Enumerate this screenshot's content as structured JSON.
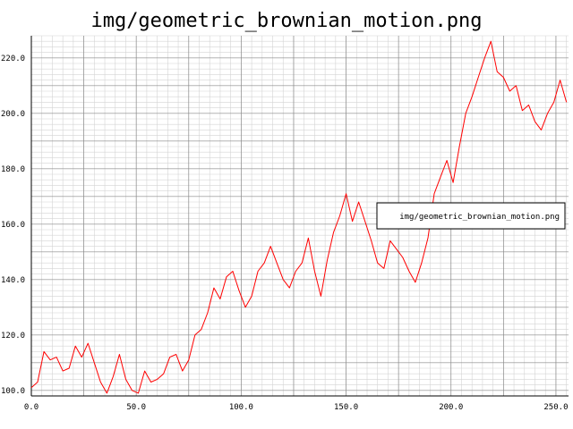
{
  "chart_data": {
    "type": "line",
    "title": "img/geometric_brownian_motion.png",
    "xlabel": "",
    "ylabel": "",
    "xlim": [
      0,
      256
    ],
    "ylim": [
      98,
      228
    ],
    "x_ticks": [
      0,
      50,
      100,
      150,
      200,
      250
    ],
    "x_tick_labels": [
      "0.0",
      "50.0",
      "100.0",
      "150.0",
      "200.0",
      "250.0"
    ],
    "y_ticks": [
      100,
      120,
      140,
      160,
      180,
      200,
      220
    ],
    "y_tick_labels": [
      "100.0",
      "120.0",
      "140.0",
      "160.0",
      "180.0",
      "200.0",
      "220.0"
    ],
    "grid": true,
    "legend_position": "right",
    "line_color": "#ff0000",
    "series": [
      {
        "name": "img/geometric_brownian_motion.png",
        "x": [
          0,
          3,
          6,
          9,
          12,
          15,
          18,
          21,
          24,
          27,
          30,
          33,
          36,
          39,
          42,
          45,
          48,
          51,
          54,
          57,
          60,
          63,
          66,
          69,
          72,
          75,
          78,
          81,
          84,
          87,
          90,
          93,
          96,
          99,
          102,
          105,
          108,
          111,
          114,
          117,
          120,
          123,
          126,
          129,
          132,
          135,
          138,
          141,
          144,
          147,
          150,
          153,
          156,
          159,
          162,
          165,
          168,
          171,
          174,
          177,
          180,
          183,
          186,
          189,
          192,
          195,
          198,
          201,
          204,
          207,
          210,
          213,
          216,
          219,
          222,
          225,
          228,
          231,
          234,
          237,
          240,
          243,
          246,
          249,
          252,
          255
        ],
        "values": [
          101,
          103,
          114,
          111,
          112,
          107,
          108,
          116,
          112,
          117,
          110,
          103,
          99,
          105,
          113,
          104,
          100,
          99,
          107,
          103,
          104,
          106,
          112,
          113,
          107,
          111,
          120,
          122,
          128,
          137,
          133,
          141,
          143,
          136,
          130,
          134,
          143,
          146,
          152,
          146,
          140,
          137,
          143,
          146,
          155,
          143,
          134,
          147,
          157,
          163,
          171,
          161,
          168,
          161,
          154,
          146,
          144,
          154,
          151,
          148,
          143,
          139,
          146,
          155,
          171,
          177,
          183,
          175,
          188,
          200,
          206,
          213,
          220,
          226,
          215,
          213,
          208,
          210,
          201,
          203,
          197,
          194,
          200,
          204,
          212,
          204
        ]
      }
    ]
  }
}
